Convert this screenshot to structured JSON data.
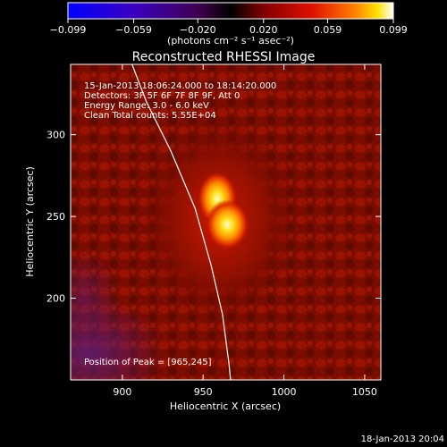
{
  "colorbar": {
    "ticks": [
      -0.099,
      -0.059,
      -0.02,
      0.02,
      0.059,
      0.099
    ],
    "tick_labels": [
      "−0.099",
      "−0.059",
      "−0.020",
      "0.020",
      "0.059",
      "0.099"
    ],
    "unit_label": "(photons cm⁻² s⁻¹ asec⁻²)",
    "range": [
      -0.099,
      0.099
    ]
  },
  "annotations": {
    "time_range": "15-Jan-2013 18:06:24.000 to 18:14:20.000",
    "detectors": "Detectors: 3F 5F 6F 7F 8F 9F, Att 0",
    "energy": "Energy Range: 3.0 - 6.0 keV",
    "clean": "Clean     Total counts: 5.55E+04",
    "peak": "Position of Peak = [965,245]"
  },
  "footer_date": "18-Jan-2013 20:04",
  "chart_data": {
    "type": "heatmap",
    "title": "Reconstructed RHESSI Image",
    "xlabel": "Heliocentric X (arcsec)",
    "ylabel": "Heliocentric Y (arcsec)",
    "xlim": [
      868,
      1060
    ],
    "ylim": [
      150,
      343
    ],
    "x_ticks": [
      900,
      950,
      1000,
      1050
    ],
    "y_ticks": [
      200,
      250,
      300
    ],
    "peak": {
      "x": 965,
      "y": 245
    },
    "limb_curve": [
      {
        "x": 906,
        "y": 343
      },
      {
        "x": 915,
        "y": 320
      },
      {
        "x": 930,
        "y": 290
      },
      {
        "x": 945,
        "y": 255
      },
      {
        "x": 955,
        "y": 220
      },
      {
        "x": 962,
        "y": 190
      },
      {
        "x": 966,
        "y": 160
      },
      {
        "x": 967,
        "y": 150
      }
    ],
    "colors": {
      "background": "#000000",
      "foreground": "#ffffff"
    }
  }
}
